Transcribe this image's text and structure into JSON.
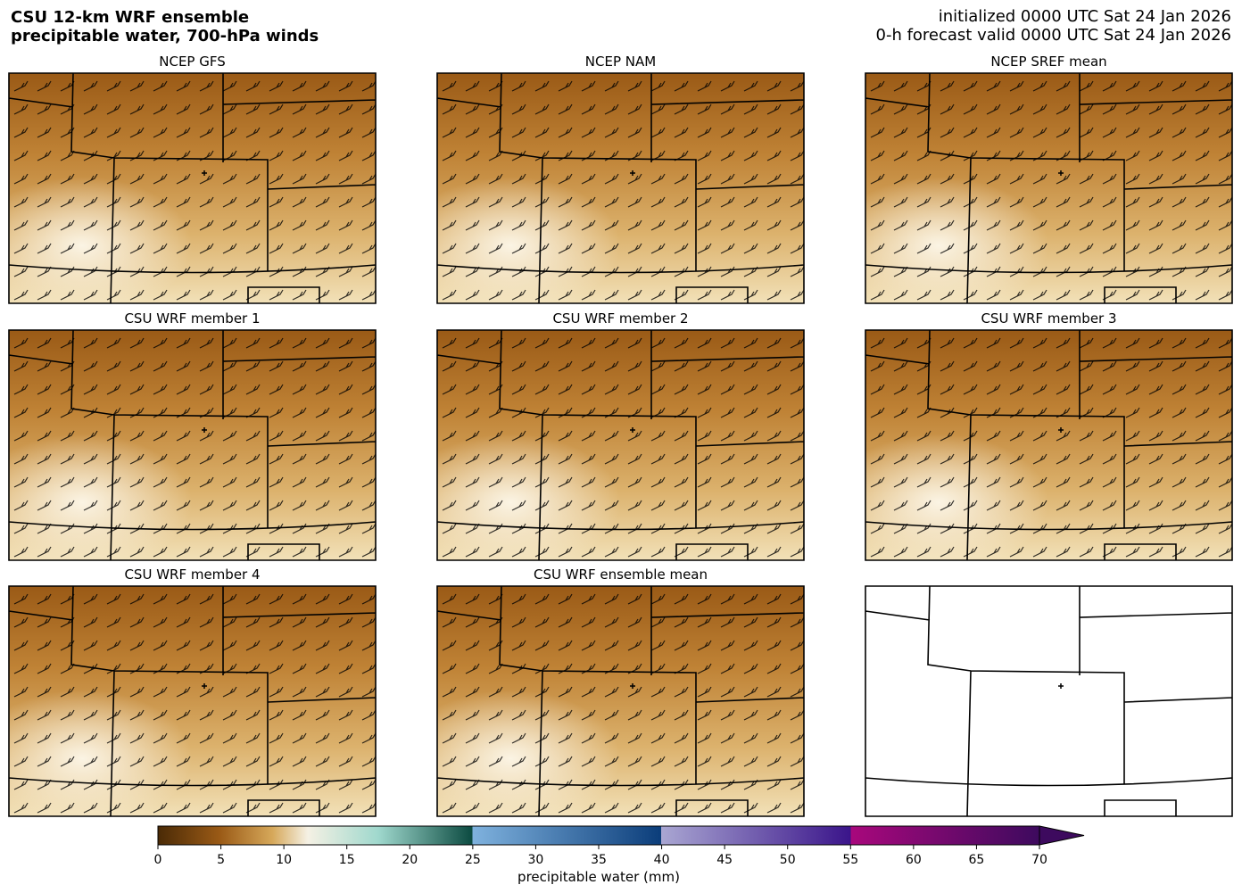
{
  "header": {
    "title_lines": [
      "CSU 12-km WRF ensemble",
      "precipitable water, 700-hPa winds"
    ],
    "init": "initialized 0000 UTC Sat 24 Jan 2026",
    "valid": "0-h forecast valid 0000 UTC Sat 24 Jan 2026"
  },
  "panels": [
    {
      "title": "NCEP GFS"
    },
    {
      "title": "NCEP NAM"
    },
    {
      "title": "NCEP SREF mean"
    },
    {
      "title": "CSU WRF member 1"
    },
    {
      "title": "CSU WRF member 2"
    },
    {
      "title": "CSU WRF member 3"
    },
    {
      "title": "CSU WRF member 4"
    },
    {
      "title": "CSU WRF ensemble mean"
    }
  ],
  "colorbar": {
    "label": "precipitable water (mm)",
    "lim": [
      0,
      70
    ],
    "ticks": [
      0,
      5,
      10,
      15,
      20,
      25,
      30,
      35,
      40,
      45,
      50,
      55,
      60,
      65,
      70
    ]
  }
}
